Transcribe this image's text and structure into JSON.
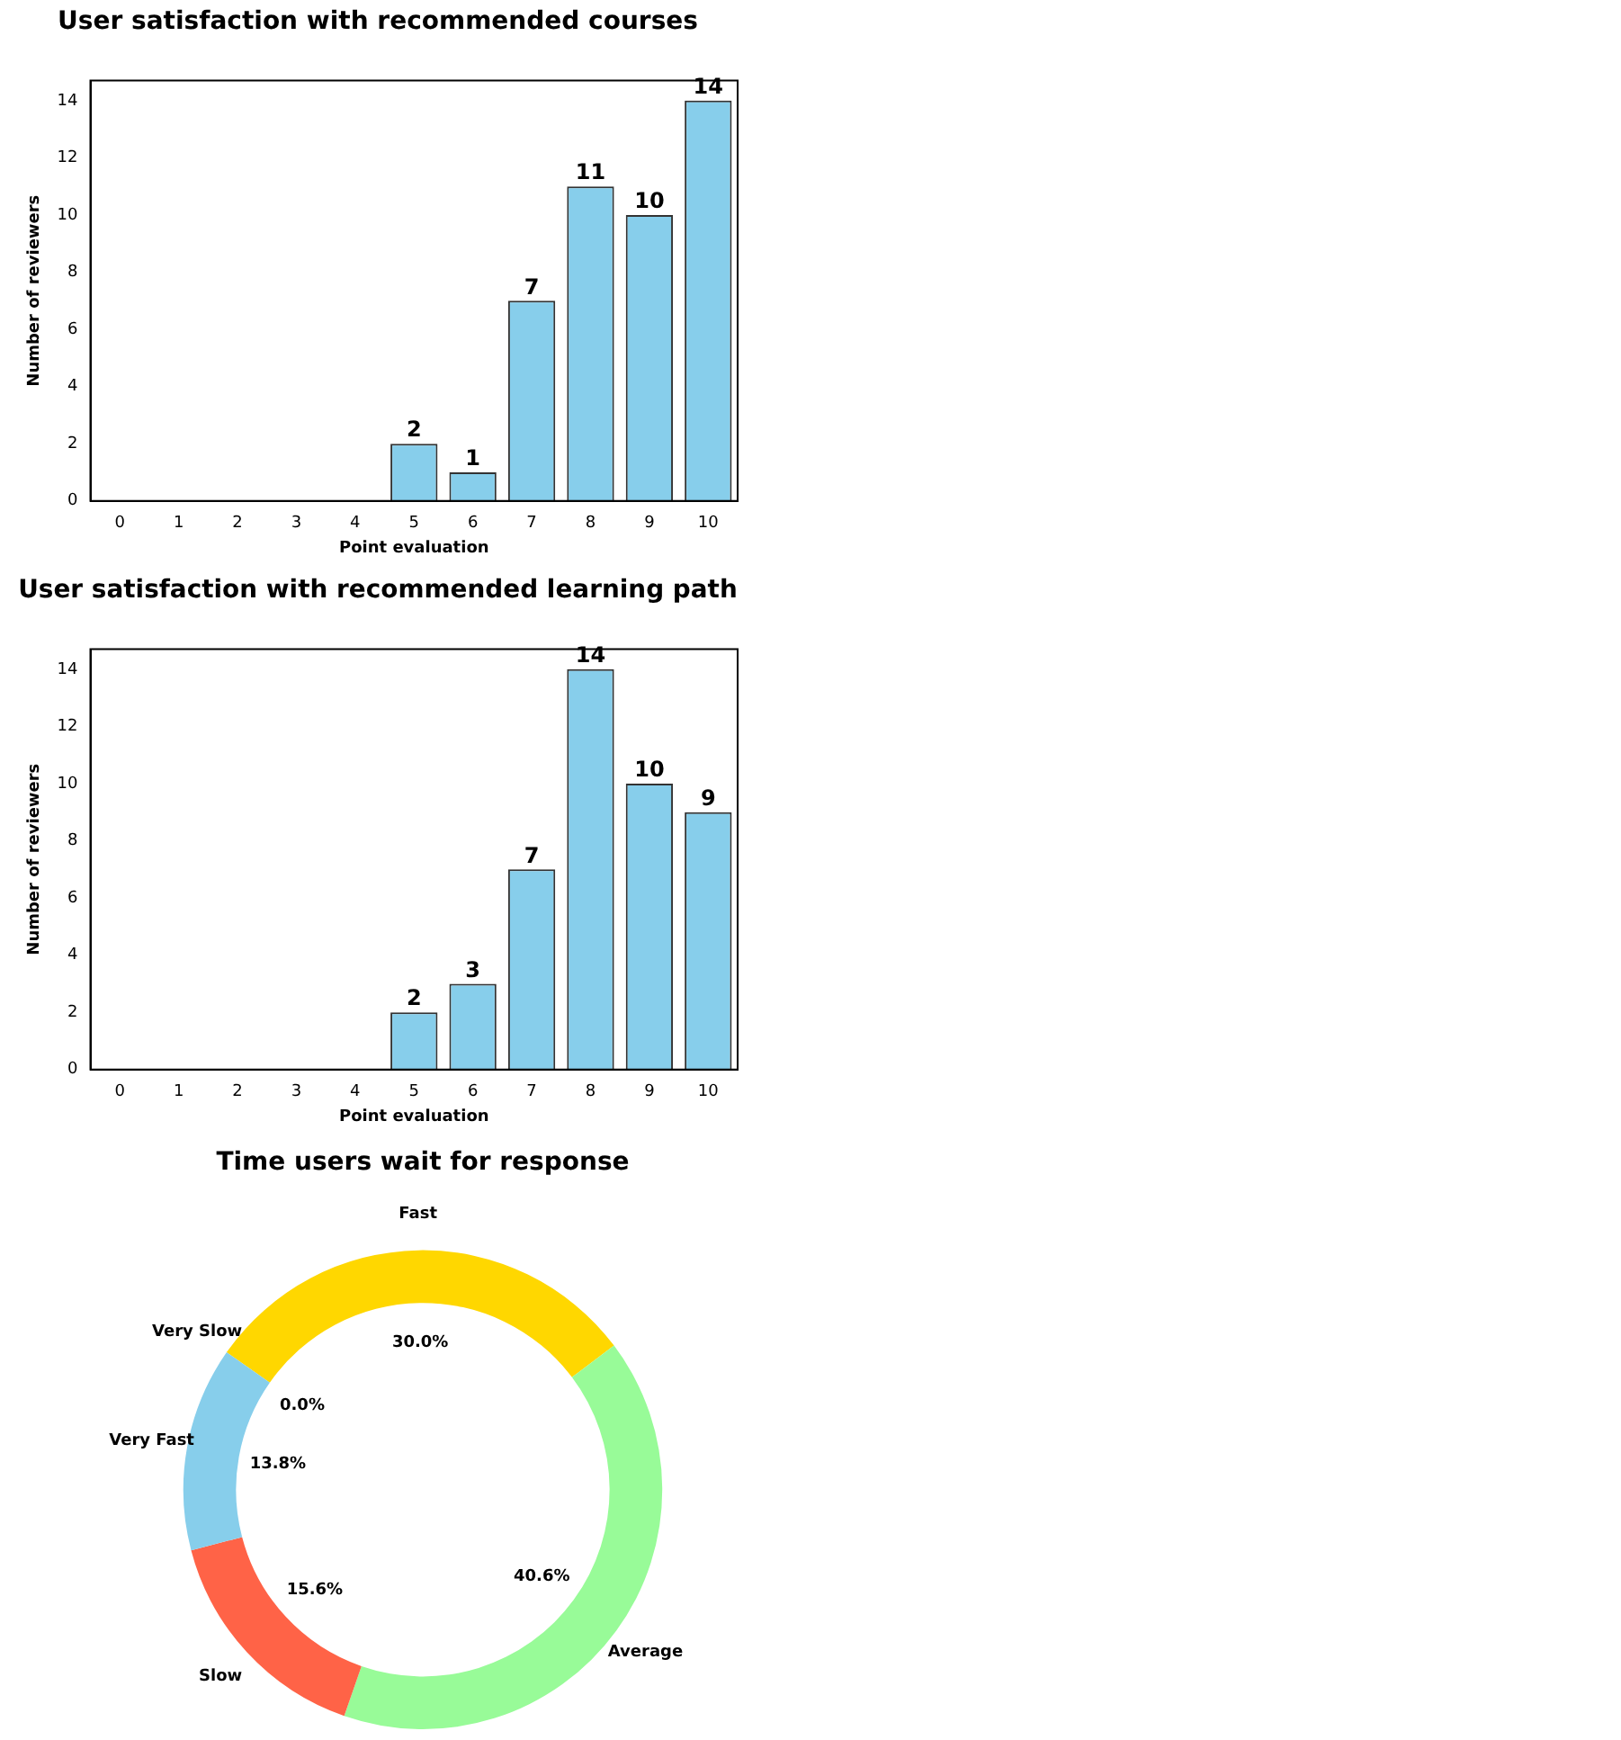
{
  "chart_data": [
    {
      "type": "bar",
      "title": "User satisfaction with recommended courses",
      "xlabel": "Point evaluation",
      "ylabel": "Number of reviewers",
      "categories": [
        "0",
        "1",
        "2",
        "3",
        "4",
        "5",
        "6",
        "7",
        "8",
        "9",
        "10"
      ],
      "values": [
        0,
        0,
        0,
        0,
        0,
        2,
        1,
        7,
        11,
        10,
        14
      ],
      "color": "#87ceeb",
      "value_labels": [
        null,
        null,
        null,
        null,
        null,
        "2",
        "1",
        "7",
        "11",
        "10",
        "14"
      ],
      "ylim": [
        0,
        14.7
      ],
      "yticks": [
        0,
        2,
        4,
        6,
        8,
        10,
        12,
        14
      ],
      "grid": false,
      "legend": false
    },
    {
      "type": "bar",
      "title": "User satisfaction with recommended learning path",
      "xlabel": "Point evaluation",
      "ylabel": "Number of reviewers",
      "categories": [
        "0",
        "1",
        "2",
        "3",
        "4",
        "5",
        "6",
        "7",
        "8",
        "9",
        "10"
      ],
      "values": [
        0,
        0,
        0,
        0,
        0,
        2,
        3,
        7,
        14,
        10,
        9
      ],
      "color": "#87ceeb",
      "value_labels": [
        null,
        null,
        null,
        null,
        null,
        "2",
        "3",
        "7",
        "14",
        "10",
        "9"
      ],
      "ylim": [
        0,
        14.7
      ],
      "yticks": [
        0,
        2,
        4,
        6,
        8,
        10,
        12,
        14
      ],
      "grid": false,
      "legend": false
    },
    {
      "type": "donut",
      "title": "Time users wait for response",
      "categories": [
        "Fast",
        "Average",
        "Slow",
        "Very Fast",
        "Very Slow"
      ],
      "values": [
        30.0,
        40.6,
        15.6,
        13.8,
        0.0
      ],
      "colors": [
        "#ffd700",
        "#98fb98",
        "#ff6347",
        "#87ceeb",
        "#ffb6c1"
      ],
      "value_labels": [
        "30.0%",
        "40.6%",
        "15.6%",
        "13.8%",
        "0.0%"
      ],
      "legend": false
    }
  ]
}
